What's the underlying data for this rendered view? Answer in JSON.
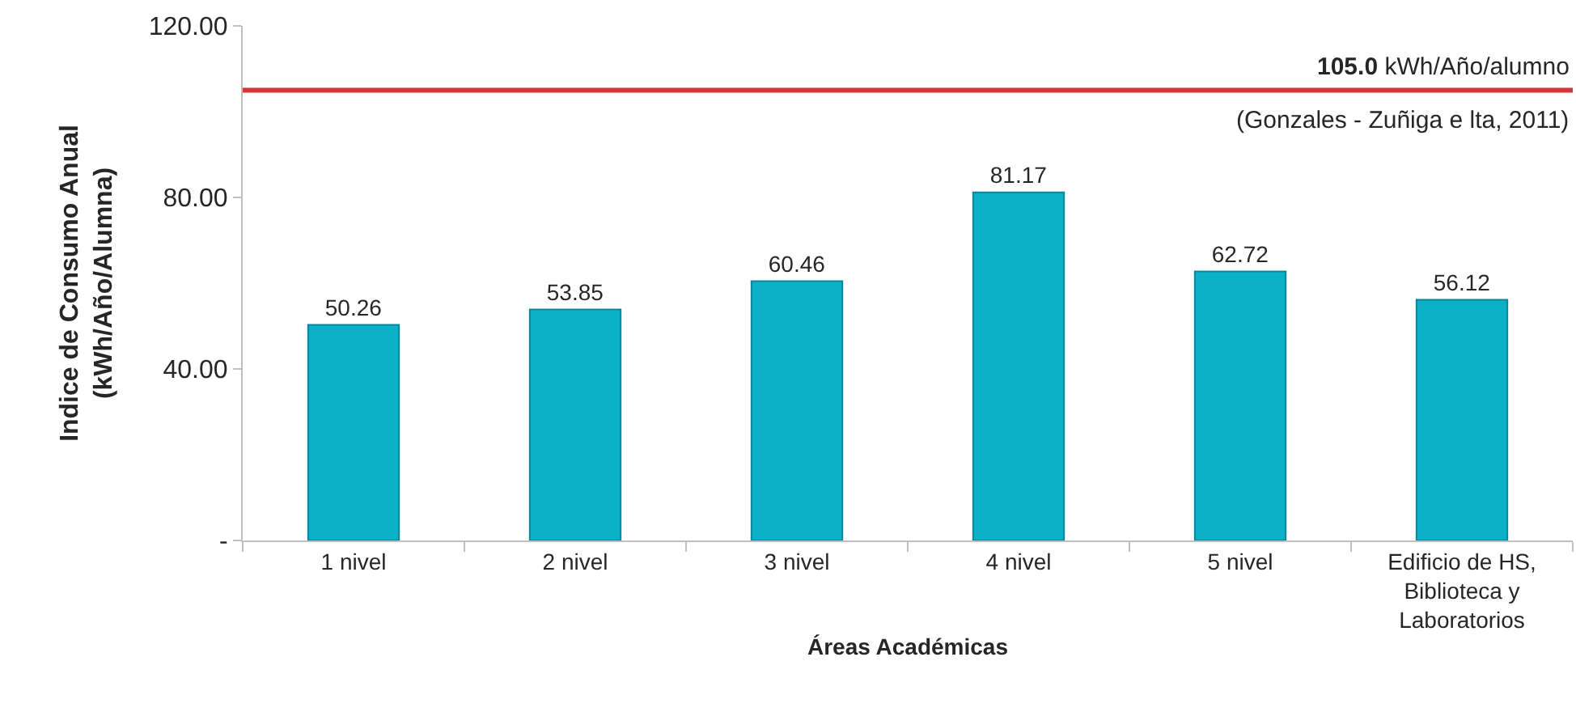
{
  "chart_data": {
    "type": "bar",
    "categories": [
      "1 nivel",
      "2 nivel",
      "3 nivel",
      "4 nivel",
      "5 nivel",
      "Edificio de HS,\nBiblioteca y\nLaboratorios"
    ],
    "values": [
      50.26,
      53.85,
      60.46,
      81.17,
      62.72,
      56.12
    ],
    "color": "#0bb0c9",
    "data_labels": true,
    "xlabel": "Áreas Académicas",
    "ylabel": "Indice de Consumo Anual\n(kWh/Año/Alumna)",
    "ylim": [
      0,
      120
    ],
    "yticks": [
      {
        "value": 0,
        "label": "-"
      },
      {
        "value": 40,
        "label": "40.00"
      },
      {
        "value": 80,
        "label": "80.00"
      },
      {
        "value": 120,
        "label": "120.00"
      }
    ],
    "ref_lines": [
      {
        "axis": "y",
        "value": 105,
        "label": "105.0 kWh/Año/alumno",
        "color": "#d0343a",
        "line_style": "solid"
      }
    ],
    "annotations": [
      "(Gonzales - Zuñiga e lta, 2011)"
    ]
  }
}
